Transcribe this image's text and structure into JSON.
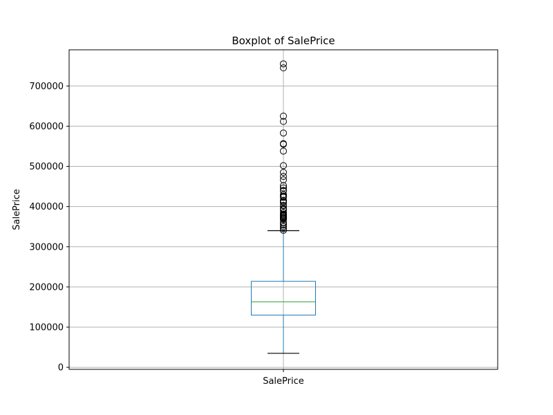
{
  "chart_data": {
    "type": "boxplot",
    "title": "Boxplot of SalePrice",
    "xlabel": "",
    "ylabel": "SalePrice",
    "categories": [
      "SalePrice"
    ],
    "ylim": [
      -5000,
      790000
    ],
    "yticks": [
      0,
      100000,
      200000,
      300000,
      400000,
      500000,
      600000,
      700000
    ],
    "ytick_labels": [
      "0",
      "100000",
      "200000",
      "300000",
      "400000",
      "500000",
      "600000",
      "700000"
    ],
    "grid": true,
    "box": {
      "whisker_low": 34900,
      "q1": 129975,
      "median": 163000,
      "q3": 214000,
      "whisker_high": 340000
    },
    "outliers": [
      755000,
      745000,
      625000,
      611657,
      582933,
      556581,
      555000,
      538000,
      501837,
      485000,
      475000,
      466500,
      451950,
      446261,
      440000,
      438780,
      430000,
      426000,
      424870,
      423000,
      415298,
      412500,
      410000,
      402861,
      402000,
      395192,
      394617,
      392500,
      392000,
      385000,
      381000,
      378500,
      377500,
      377426,
      375000,
      372500,
      372402,
      370878,
      369900,
      367294,
      360000,
      359100,
      354000,
      350000,
      345000,
      341000
    ],
    "colors": {
      "box": "#1f77b4",
      "median": "#2ca02c",
      "whisker": "#1f77b4",
      "cap": "#000000",
      "flier": "#000000",
      "grid": "#b0b0b0"
    }
  }
}
